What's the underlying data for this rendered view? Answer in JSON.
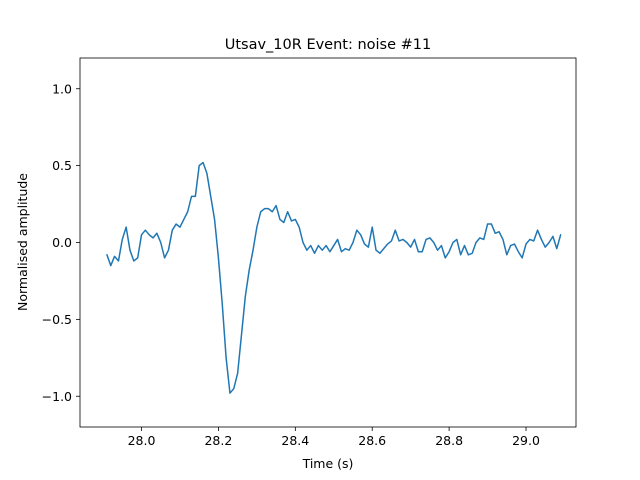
{
  "chart_data": {
    "type": "line",
    "title": "Utsav_10R Event: noise #11",
    "xlabel": "Time (s)",
    "ylabel": "Normalised amplitude",
    "xlim": [
      27.84,
      29.13
    ],
    "ylim": [
      -1.2,
      1.2
    ],
    "xticks": [
      28.0,
      28.2,
      28.4,
      28.6,
      28.8,
      29.0
    ],
    "xtick_labels": [
      "28.0",
      "28.2",
      "28.4",
      "28.6",
      "28.8",
      "29.0"
    ],
    "yticks": [
      -1.0,
      -0.5,
      0.0,
      0.5,
      1.0
    ],
    "ytick_labels": [
      "−1.0",
      "−0.5",
      "0.0",
      "0.5",
      "1.0"
    ],
    "grid": false,
    "color": "#1f77b4",
    "series": [
      {
        "x": [
          27.91,
          27.92,
          27.93,
          27.94,
          27.95,
          27.96,
          27.97,
          27.98,
          27.99,
          28.0,
          28.01,
          28.02,
          28.03,
          28.04,
          28.05,
          28.06,
          28.07,
          28.08,
          28.09,
          28.1,
          28.11,
          28.12,
          28.13,
          28.14,
          28.15,
          28.16,
          28.17,
          28.18,
          28.19,
          28.2,
          28.21,
          28.22,
          28.23,
          28.24,
          28.25,
          28.26,
          28.27,
          28.28,
          28.29,
          28.3,
          28.31,
          28.32,
          28.33,
          28.34,
          28.35,
          28.36,
          28.37,
          28.38,
          28.39,
          28.4,
          28.41,
          28.42,
          28.43,
          28.44,
          28.45,
          28.46,
          28.47,
          28.48,
          28.49,
          28.5,
          28.51,
          28.52,
          28.53,
          28.54,
          28.55,
          28.56,
          28.57,
          28.58,
          28.59,
          28.6,
          28.61,
          28.62,
          28.63,
          28.64,
          28.65,
          28.66,
          28.67,
          28.68,
          28.69,
          28.7,
          28.71,
          28.72,
          28.73,
          28.74,
          28.75,
          28.76,
          28.77,
          28.78,
          28.79,
          28.8,
          28.81,
          28.82,
          28.83,
          28.84,
          28.85,
          28.86,
          28.87,
          28.88,
          28.89,
          28.9,
          28.91,
          28.92,
          28.93,
          28.94,
          28.95,
          28.96,
          28.97,
          28.98,
          28.99,
          29.0,
          29.01,
          29.02,
          29.03,
          29.04,
          29.05,
          29.06,
          29.07,
          29.08,
          29.09
        ],
        "y": [
          -0.08,
          -0.15,
          -0.09,
          -0.12,
          0.02,
          0.1,
          -0.05,
          -0.12,
          -0.1,
          0.05,
          0.08,
          0.05,
          0.03,
          0.06,
          0.0,
          -0.1,
          -0.05,
          0.08,
          0.12,
          0.1,
          0.15,
          0.2,
          0.3,
          0.3,
          0.5,
          0.52,
          0.45,
          0.3,
          0.15,
          -0.1,
          -0.4,
          -0.75,
          -0.98,
          -0.95,
          -0.85,
          -0.6,
          -0.35,
          -0.18,
          -0.05,
          0.1,
          0.2,
          0.22,
          0.22,
          0.2,
          0.24,
          0.15,
          0.13,
          0.2,
          0.14,
          0.15,
          0.1,
          0.0,
          -0.05,
          -0.02,
          -0.07,
          -0.02,
          -0.05,
          -0.02,
          -0.06,
          -0.02,
          0.02,
          -0.06,
          -0.04,
          -0.05,
          0.0,
          0.08,
          0.05,
          -0.01,
          -0.03,
          0.1,
          -0.05,
          -0.07,
          -0.04,
          -0.01,
          0.01,
          0.08,
          0.01,
          0.02,
          0.0,
          -0.03,
          0.02,
          -0.06,
          -0.06,
          0.02,
          0.03,
          0.0,
          -0.05,
          -0.02,
          -0.1,
          -0.06,
          0.0,
          0.02,
          -0.08,
          -0.02,
          -0.08,
          -0.07,
          0.0,
          0.03,
          0.02,
          0.12,
          0.12,
          0.06,
          0.07,
          0.02,
          -0.08,
          -0.02,
          -0.01,
          -0.06,
          -0.1,
          -0.01,
          0.02,
          0.01,
          0.08,
          0.02,
          -0.03,
          0.0,
          0.04,
          -0.04,
          0.05
        ]
      }
    ]
  }
}
